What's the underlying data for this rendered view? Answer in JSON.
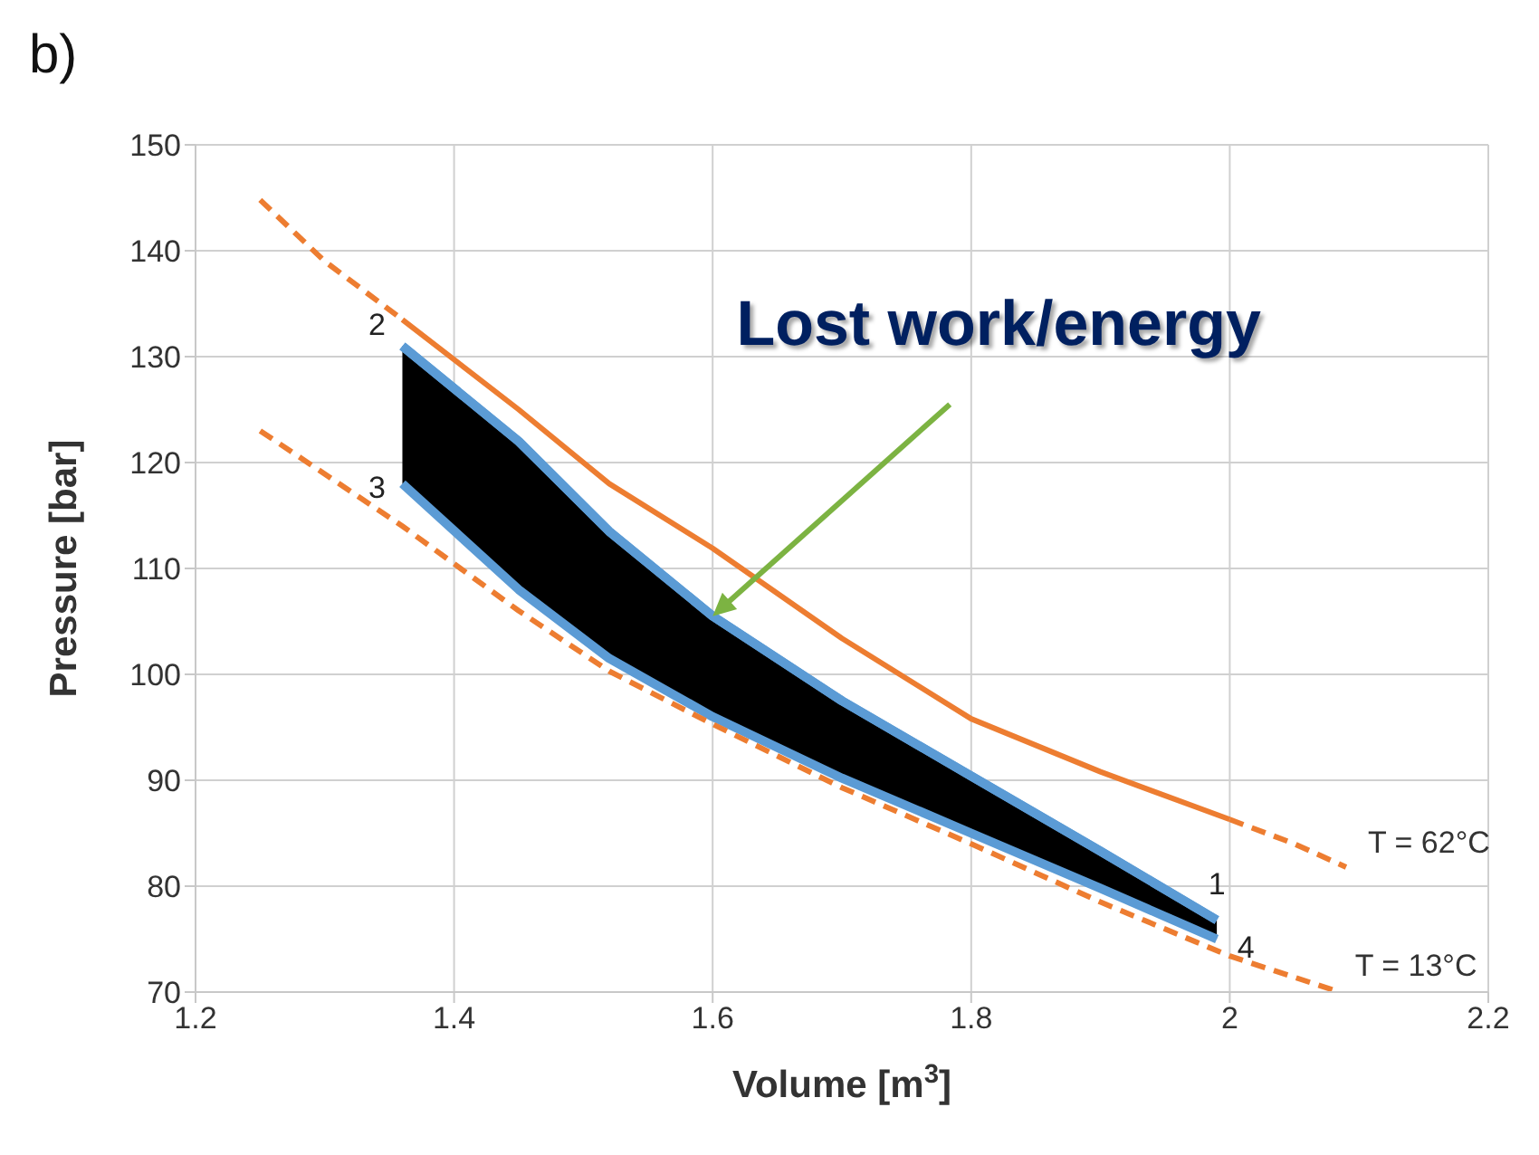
{
  "chart_data": {
    "type": "line",
    "xlabel": "Volume [m$^{3}$]",
    "ylabel": "Pressure [bar]",
    "xlim": [
      1.2,
      2.2
    ],
    "xticks": [
      1.2,
      1.4,
      1.6,
      1.8,
      2,
      2.2
    ],
    "ylim": [
      70,
      150
    ],
    "yticks": [
      70,
      80,
      90,
      100,
      110,
      120,
      130,
      140,
      150
    ],
    "grid": true,
    "marker": "none",
    "series": [
      {
        "color": "#ed7d31",
        "line_style": "dashed",
        "x": [
          1.25,
          1.3,
          1.36
        ],
        "values": [
          144.8,
          139,
          133.5
        ]
      },
      {
        "color": "#ed7d31",
        "line_style": "solid",
        "x": [
          1.36,
          1.45,
          1.52,
          1.6,
          1.7,
          1.8,
          1.9,
          2.0
        ],
        "values": [
          133.5,
          125,
          118,
          111.9,
          103.4,
          95.8,
          90.8,
          86.3
        ]
      },
      {
        "name": "T = 62°C",
        "color": "#ed7d31",
        "line_style": "dashed",
        "x": [
          2.0,
          2.05,
          2.09
        ],
        "values": [
          86.3,
          84,
          81.8
        ]
      },
      {
        "name": "T = 13°C",
        "color": "#ed7d31",
        "line_style": "dashed",
        "x": [
          1.25,
          1.36,
          1.45,
          1.52,
          1.6,
          1.7,
          1.8,
          1.9,
          2.0,
          2.08
        ],
        "values": [
          123,
          114,
          106,
          100.3,
          95.3,
          89.3,
          84,
          78.5,
          73.4,
          70.2
        ]
      },
      {
        "color": "#5b9bd5",
        "line_style": "solid",
        "x": [
          1.36,
          1.45,
          1.52,
          1.6,
          1.7,
          1.8,
          1.9,
          1.99
        ],
        "values": [
          131,
          122,
          113.5,
          105.5,
          97.5,
          90.4,
          83.3,
          76.8
        ],
        "upper": [
          131,
          122,
          113.5,
          105.5,
          97.5,
          90.4,
          83.3,
          76.8
        ],
        "lower": [
          118,
          108,
          101.5,
          96,
          90.2,
          85,
          79.8,
          75
        ]
      }
    ],
    "annotations": [
      "b)",
      {
        "text": "2",
        "x": 1.36,
        "y": 131
      },
      {
        "text": "3",
        "x": 1.36,
        "y": 118
      },
      {
        "text": "1",
        "x": 1.99,
        "y": 76.8
      },
      {
        "text": "4",
        "x": 1.99,
        "y": 75
      },
      {
        "text": "Lost work/energy",
        "x": 1.6,
        "y": 105.5
      }
    ]
  }
}
